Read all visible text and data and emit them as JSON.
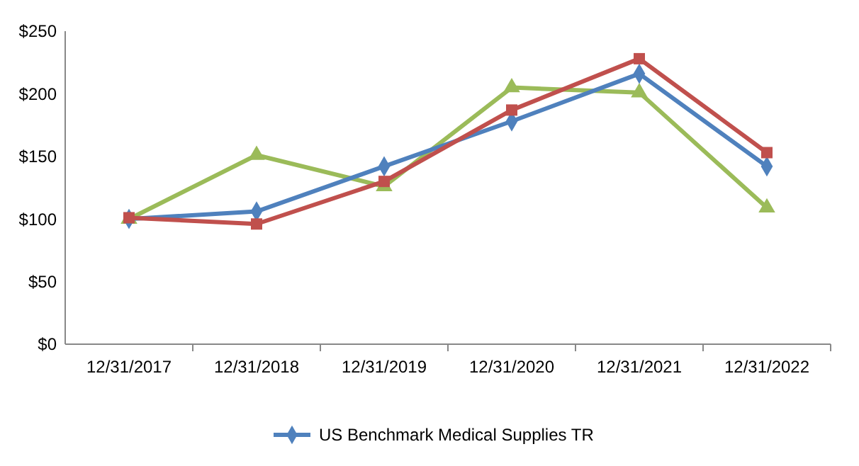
{
  "chart_data": {
    "type": "line",
    "categories": [
      "12/31/2017",
      "12/31/2018",
      "12/31/2019",
      "12/31/2020",
      "12/31/2021",
      "12/31/2022"
    ],
    "ylim": [
      0,
      250
    ],
    "yticks": [
      {
        "value": 0,
        "label": "$0"
      },
      {
        "value": 50,
        "label": "$50"
      },
      {
        "value": 100,
        "label": "$100"
      },
      {
        "value": 150,
        "label": "$150"
      },
      {
        "value": 200,
        "label": "$200"
      },
      {
        "value": 250,
        "label": "$250"
      }
    ],
    "legend": "bottom",
    "grid": false,
    "series": [
      {
        "color": "#9bbb59",
        "marker": "triangle",
        "values": [
          100,
          151,
          126,
          205,
          201,
          109
        ]
      },
      {
        "name": "US Benchmark Medical Supplies TR",
        "color": "#4f81bd",
        "marker": "diamond",
        "values": [
          100,
          106,
          142,
          178,
          216,
          142
        ]
      },
      {
        "color": "#c0504d",
        "marker": "square",
        "values": [
          101,
          96,
          130,
          187,
          228,
          153
        ]
      }
    ]
  }
}
